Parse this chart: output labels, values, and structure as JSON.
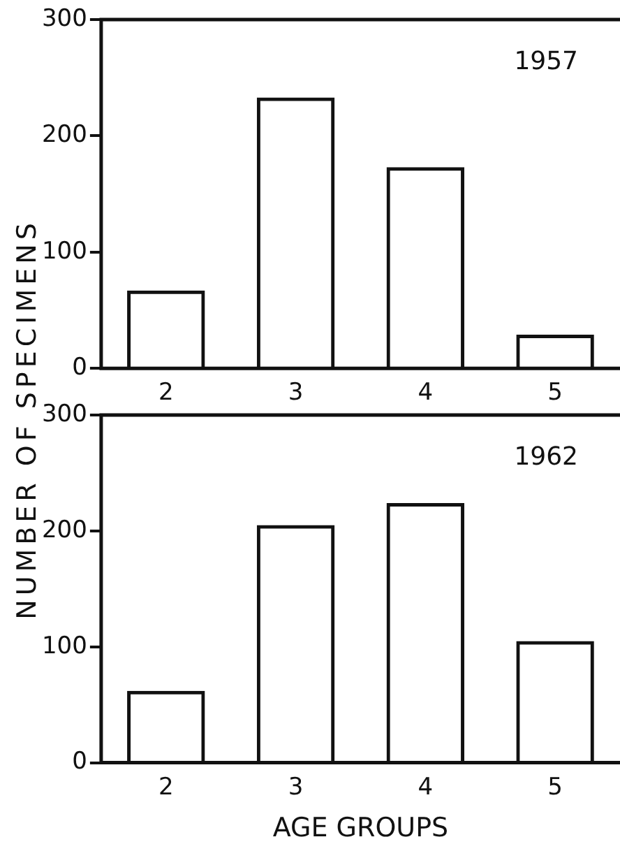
{
  "chart_data": [
    {
      "type": "bar",
      "title": "1957",
      "ylabel": "NUMBER OF SPECIMENS",
      "categories": [
        "2",
        "3",
        "4",
        "5"
      ],
      "values": [
        67,
        233,
        173,
        29
      ],
      "color": "#111111",
      "ylim": [
        0,
        300
      ],
      "yticks": [
        0,
        100,
        200,
        300
      ],
      "grid": false,
      "legend": false
    },
    {
      "type": "bar",
      "title": "1962",
      "xlabel": "AGE GROUPS",
      "categories": [
        "2",
        "3",
        "4",
        "5"
      ],
      "values": [
        62,
        205,
        224,
        105
      ],
      "color": "#111111",
      "ylim": [
        0,
        300
      ],
      "yticks": [
        0,
        100,
        200,
        300
      ],
      "grid": false,
      "legend": false
    }
  ]
}
